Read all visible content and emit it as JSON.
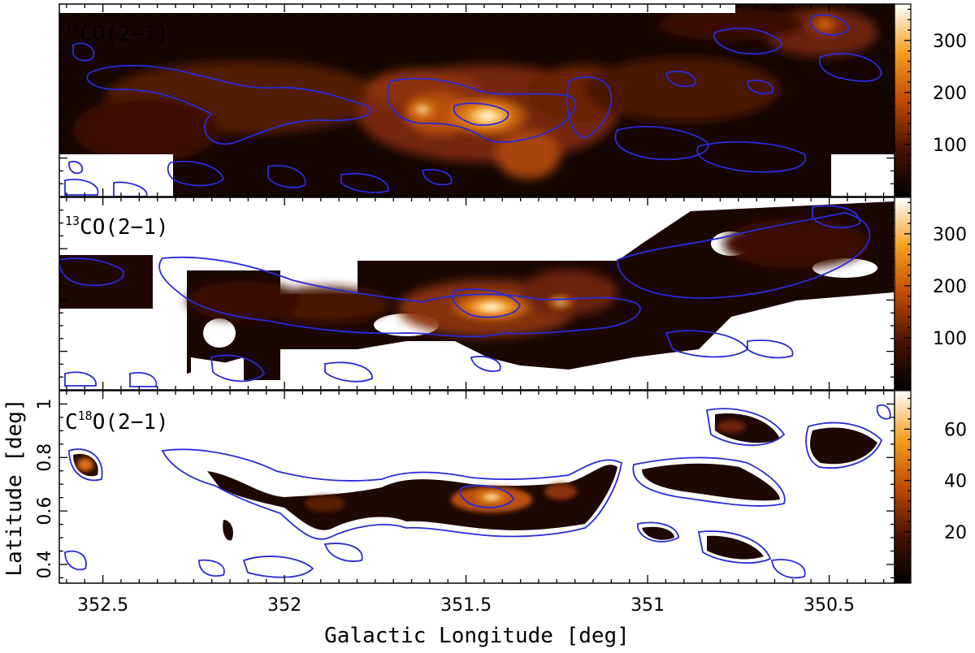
{
  "chart_data": [
    {
      "type": "heatmap",
      "label_sup": "12",
      "label_main": "CO(2−1)",
      "label_sup_position": "before",
      "coverage": "full",
      "colorbar": {
        "min": 0,
        "max": 370,
        "ticks": [
          100,
          200,
          300
        ],
        "cmap": "black-orange-white"
      },
      "xlim": [
        352.62,
        350.32
      ],
      "contour_color": "#2a2ad8"
    },
    {
      "type": "heatmap",
      "label_sup": "13",
      "label_main": "CO(2−1)",
      "label_sup_position": "before",
      "coverage": "partial",
      "colorbar": {
        "min": 0,
        "max": 370,
        "ticks": [
          100,
          200,
          300
        ],
        "cmap": "black-orange-white"
      },
      "xlim": [
        352.62,
        350.32
      ],
      "contour_color": "#2a2ad8"
    },
    {
      "type": "heatmap",
      "label_pre": "C",
      "label_sup": "18",
      "label_main": "O(2−1)",
      "label_sup_position": "middle",
      "coverage": "sparse",
      "colorbar": {
        "min": 0,
        "max": 75,
        "ticks": [
          20,
          40,
          60
        ],
        "cmap": "black-orange-white"
      },
      "xlim": [
        352.62,
        350.32
      ],
      "ylim": [
        0.33,
        1.05
      ],
      "yticks": [
        0.4,
        0.6,
        0.8,
        1
      ],
      "ylabel": "Latitude [deg]",
      "contour_color": "#2a2ad8"
    }
  ],
  "x_axis": {
    "xlabel": "Galactic Longitude [deg]",
    "ticks": [
      352.5,
      352,
      351.5,
      351,
      350.5
    ]
  }
}
